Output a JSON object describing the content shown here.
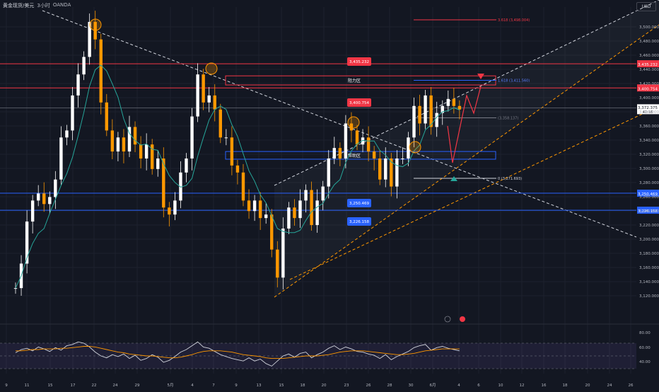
{
  "header": {
    "title": "黄金现货/美元",
    "interval": "3小时",
    "source": "OANDA"
  },
  "currency": "USD",
  "chart_data": [
    {
      "type": "candlestick",
      "title": "黄金现货/美元",
      "ylim": [
        3108,
        3525
      ],
      "y_ticks": [
        "3,500.000",
        "3,480.000",
        "3,460.000",
        "3,440.000",
        "3,420.000",
        "3,400.000",
        "3,380.000",
        "3,360.000",
        "3,340.000",
        "3,320.000",
        "3,300.000",
        "3,280.000",
        "3,260.000",
        "3,240.000",
        "3,220.000",
        "3,200.000",
        "3,180.000",
        "3,160.000",
        "3,140.000",
        "3,120.000"
      ],
      "x_ticks": [
        "9",
        "11",
        "15",
        "17",
        "22",
        "24",
        "29",
        "5月",
        "4",
        "7",
        "9",
        "13",
        "15",
        "18",
        "20",
        "23",
        "26",
        "28",
        "30",
        "6月",
        "4",
        "6",
        "10",
        "12",
        "16",
        "18",
        "20",
        "24",
        "26"
      ],
      "price_path": [
        [
          0,
          3115
        ],
        [
          2,
          3150
        ],
        [
          4,
          3210
        ],
        [
          5,
          3240
        ],
        [
          6,
          3250
        ],
        [
          7,
          3235
        ],
        [
          8,
          3245
        ],
        [
          9,
          3270
        ],
        [
          10,
          3330
        ],
        [
          11,
          3340
        ],
        [
          12,
          3390
        ],
        [
          13,
          3420
        ],
        [
          14,
          3445
        ],
        [
          15,
          3495
        ],
        [
          16,
          3470
        ],
        [
          17,
          3380
        ],
        [
          18,
          3340
        ],
        [
          19,
          3310
        ],
        [
          20,
          3330
        ],
        [
          21,
          3310
        ],
        [
          22,
          3345
        ],
        [
          23,
          3320
        ],
        [
          24,
          3300
        ],
        [
          25,
          3320
        ],
        [
          26,
          3285
        ],
        [
          27,
          3300
        ],
        [
          28,
          3230
        ],
        [
          29,
          3220
        ],
        [
          30,
          3240
        ],
        [
          31,
          3280
        ],
        [
          32,
          3300
        ],
        [
          33,
          3360
        ],
        [
          34,
          3420
        ],
        [
          35,
          3380
        ],
        [
          36,
          3390
        ],
        [
          37,
          3370
        ],
        [
          38,
          3330
        ],
        [
          39,
          3330
        ],
        [
          40,
          3290
        ],
        [
          41,
          3280
        ],
        [
          42,
          3240
        ],
        [
          43,
          3225
        ],
        [
          44,
          3240
        ],
        [
          45,
          3215
        ],
        [
          46,
          3220
        ],
        [
          47,
          3170
        ],
        [
          48,
          3130
        ],
        [
          49,
          3200
        ],
        [
          50,
          3230
        ],
        [
          51,
          3215
        ],
        [
          52,
          3240
        ],
        [
          53,
          3255
        ],
        [
          54,
          3205
        ],
        [
          55,
          3240
        ],
        [
          56,
          3260
        ],
        [
          57,
          3300
        ],
        [
          58,
          3315
        ],
        [
          59,
          3300
        ],
        [
          60,
          3350
        ],
        [
          61,
          3340
        ],
        [
          62,
          3320
        ],
        [
          63,
          3330
        ],
        [
          64,
          3310
        ],
        [
          65,
          3300
        ],
        [
          66,
          3270
        ],
        [
          67,
          3300
        ],
        [
          68,
          3260
        ],
        [
          69,
          3300
        ],
        [
          70,
          3300
        ],
        [
          71,
          3330
        ],
        [
          72,
          3375
        ],
        [
          73,
          3350
        ],
        [
          74,
          3390
        ],
        [
          75,
          3345
        ],
        [
          76,
          3365
        ],
        [
          77,
          3375
        ],
        [
          78,
          3385
        ],
        [
          79,
          3375
        ],
        [
          80,
          3370
        ]
      ],
      "series": [
        {
          "name": "",
          "values": [
            3115,
            3150,
            3210,
            3240,
            3250,
            3235,
            3245,
            3270,
            3330,
            3340,
            3390,
            3420,
            3445,
            3495,
            3470,
            3380,
            3340,
            3310,
            3330,
            3310,
            3345,
            3320,
            3300,
            3320,
            3285,
            3300,
            3230,
            3220,
            3240,
            3280,
            3300,
            3360,
            3420,
            3380,
            3390,
            3370,
            3330,
            3330,
            3290,
            3280,
            3240,
            3225,
            3240,
            3215,
            3220,
            3170,
            3130,
            3200,
            3230,
            3215,
            3240,
            3255,
            3205,
            3240,
            3260,
            3300,
            3315,
            3300,
            3350,
            3340,
            3320,
            3330,
            3310,
            3300,
            3270,
            3300,
            3260,
            3300,
            3300,
            3330,
            3375,
            3350,
            3390,
            3345,
            3365,
            3375,
            3385,
            3375,
            3370
          ]
        }
      ],
      "price_tag": {
        "value": "3,372.375",
        "sub": "41:18"
      },
      "levels": [
        {
          "value": 3435.232,
          "label": "3,435.232",
          "color": "#f23645"
        },
        {
          "value": 3400.754,
          "label": "3,400.754",
          "color": "#f23645"
        },
        {
          "value": 3250.469,
          "label": "3,250.469",
          "color": "#2962ff"
        },
        {
          "value": 3226.158,
          "label": "3,226.158",
          "color": "#2962ff"
        }
      ],
      "zones": [
        {
          "label": "阻力区",
          "top": 3418,
          "bottom": 3405,
          "color": "#f23645"
        },
        {
          "label": "帮助区",
          "top": 3310,
          "bottom": 3299,
          "color": "#2962ff"
        }
      ],
      "annotations": [
        {
          "text": "3.618 (3,498.004)",
          "value": 3498.004
        },
        {
          "text": "1.618 (3,411.560)",
          "value": 3411.56
        },
        {
          "text": "(3,358.137)",
          "value": 3358.137
        },
        {
          "text": "0 (3,271.693)",
          "value": 3271.693
        }
      ]
    },
    {
      "type": "line",
      "title": "RSI",
      "ylim": [
        30,
        90
      ],
      "y_ticks": [
        "80.00",
        "60.00",
        "40.00"
      ],
      "series": [
        {
          "name": "",
          "values": [
            55,
            60,
            62,
            58,
            64,
            61,
            57,
            63,
            59,
            66,
            68,
            72,
            70,
            64,
            56,
            50,
            47,
            52,
            49,
            53,
            46,
            51,
            43,
            46,
            52,
            48,
            40,
            43,
            49,
            56,
            60,
            66,
            72,
            64,
            62,
            57,
            52,
            49,
            46,
            44,
            42,
            47,
            42,
            45,
            38,
            34,
            42,
            50,
            53,
            48,
            54,
            56,
            47,
            52,
            56,
            62,
            66,
            60,
            64,
            61,
            57,
            56,
            53,
            51,
            46,
            52,
            44,
            49,
            53,
            57,
            63,
            66,
            68,
            59,
            63,
            65,
            62,
            60,
            58
          ]
        },
        {
          "name": "",
          "values": [
            58,
            58,
            59,
            60,
            60,
            61,
            61,
            61,
            62,
            62,
            63,
            64,
            65,
            65,
            64,
            62,
            60,
            58,
            56,
            55,
            53,
            52,
            51,
            50,
            50,
            49,
            48,
            47,
            47,
            48,
            50,
            52,
            55,
            57,
            58,
            58,
            58,
            57,
            56,
            54,
            52,
            51,
            50,
            49,
            47,
            46,
            46,
            46,
            47,
            48,
            49,
            50,
            50,
            50,
            51,
            52,
            54,
            56,
            57,
            58,
            58,
            58,
            57,
            56,
            55,
            54,
            53,
            52,
            52,
            53,
            54,
            56,
            58,
            59,
            60,
            61,
            61,
            61,
            61
          ]
        }
      ]
    }
  ]
}
